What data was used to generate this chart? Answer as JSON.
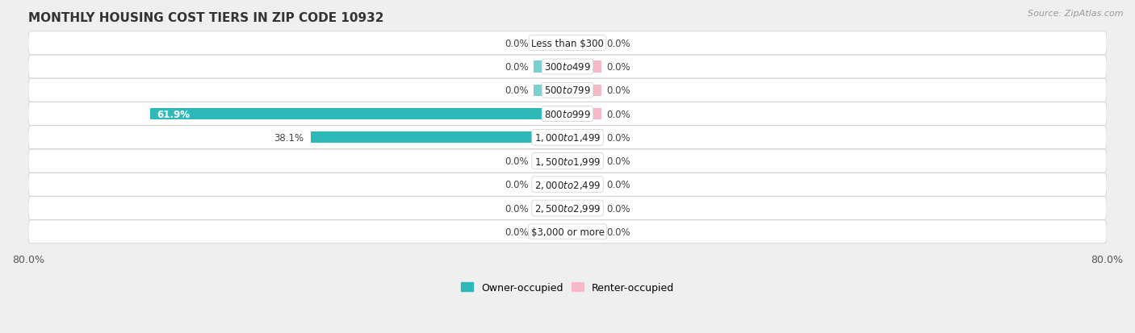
{
  "title": "MONTHLY HOUSING COST TIERS IN ZIP CODE 10932",
  "source": "Source: ZipAtlas.com",
  "categories": [
    "Less than $300",
    "$300 to $499",
    "$500 to $799",
    "$800 to $999",
    "$1,000 to $1,499",
    "$1,500 to $1,999",
    "$2,000 to $2,499",
    "$2,500 to $2,999",
    "$3,000 or more"
  ],
  "owner_values": [
    0.0,
    0.0,
    0.0,
    61.9,
    38.1,
    0.0,
    0.0,
    0.0,
    0.0
  ],
  "renter_values": [
    0.0,
    0.0,
    0.0,
    0.0,
    0.0,
    0.0,
    0.0,
    0.0,
    0.0
  ],
  "owner_color_small": "#7acfcf",
  "owner_color_large": "#2eb8b8",
  "renter_color": "#f7b8c8",
  "background_color": "#efefef",
  "bar_bg_color": "#ffffff",
  "xlim": 80.0,
  "stub_size": 5.0,
  "legend_owner": "Owner-occupied",
  "legend_renter": "Renter-occupied",
  "title_fontsize": 11,
  "label_fontsize": 8.5,
  "value_fontsize": 8.5,
  "source_fontsize": 8
}
